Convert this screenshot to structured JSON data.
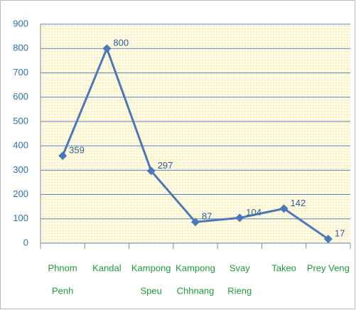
{
  "chart_data": {
    "type": "line",
    "categories": [
      [
        "Phnom",
        "Penh"
      ],
      [
        "Kandal"
      ],
      [
        "Kampong",
        "Speu"
      ],
      [
        "Kampong",
        "Chhnang"
      ],
      [
        "Svay",
        "Rieng"
      ],
      [
        "Takeo"
      ],
      [
        "Prey Veng"
      ]
    ],
    "values": [
      359,
      800,
      297,
      87,
      104,
      142,
      17
    ],
    "color": "#4a78b8",
    "ylim": [
      0,
      900
    ],
    "yticks": [
      0,
      100,
      200,
      300,
      400,
      500,
      600,
      700,
      800,
      900
    ],
    "grid": true
  }
}
